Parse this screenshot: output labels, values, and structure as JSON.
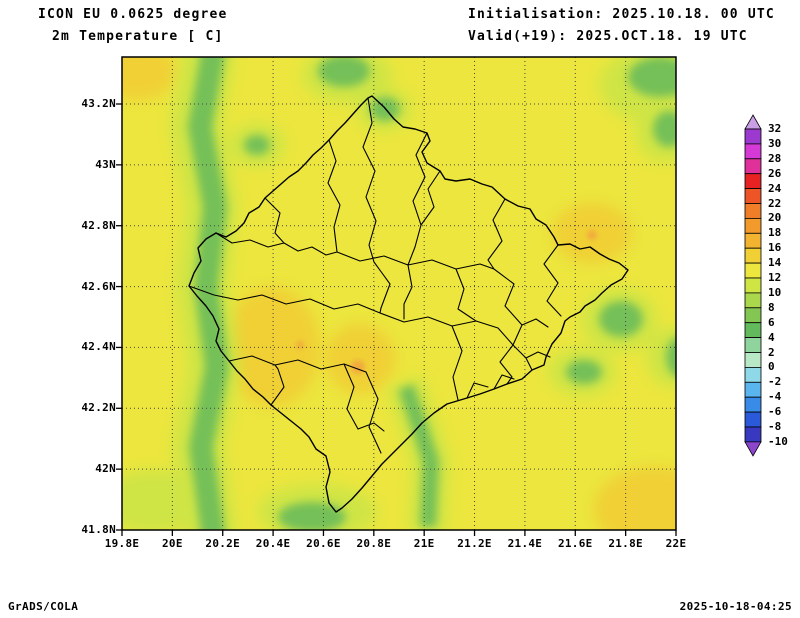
{
  "title": {
    "model": "ICON EU 0.0625 degree",
    "variable": "2m Temperature [ C]",
    "initialisation": "Initialisation: 2025.10.18. 00 UTC",
    "valid": "Valid(+19): 2025.OCT.18. 19 UTC"
  },
  "footer": {
    "credit": "GrADS/COLA",
    "created": "2025-10-18-04:25"
  },
  "axes": {
    "lat_labels": [
      "43.2N",
      "43N",
      "42.8N",
      "42.6N",
      "42.4N",
      "42.2N",
      "42N",
      "41.8N"
    ],
    "lon_labels": [
      "19.8E",
      "20E",
      "20.2E",
      "20.4E",
      "20.6E",
      "20.8E",
      "21E",
      "21.2E",
      "21.4E",
      "21.6E",
      "21.8E",
      "22E"
    ]
  },
  "colorbar": {
    "tick_labels": [
      "32",
      "30",
      "28",
      "26",
      "24",
      "22",
      "20",
      "18",
      "16",
      "14",
      "12",
      "10",
      "8",
      "6",
      "4",
      "2",
      "0",
      "-2",
      "-4",
      "-6",
      "-8",
      "-10"
    ],
    "colors_top_to_bottom": [
      "#c9a0e6",
      "#9c3ad0",
      "#d63ad6",
      "#e0309a",
      "#e62222",
      "#ee5526",
      "#f07d28",
      "#f29a2c",
      "#f2b430",
      "#f0d034",
      "#ece63e",
      "#cfe544",
      "#abd74c",
      "#84c654",
      "#62ba5c",
      "#8fd49c",
      "#b8e8c6",
      "#8ed8e8",
      "#5ab4ee",
      "#388ce8",
      "#2a5ada",
      "#3838c0",
      "#8c46cc"
    ]
  },
  "map_palette": {
    "base_12_14": "#ece63e",
    "band_10_12": "#cfe544",
    "green_4_8": "#74c058",
    "gold_14_16": "#f0d034",
    "orange_16_18": "#f2ab3c",
    "boundary": "#000000",
    "grid": "#454545",
    "frame": "#000000"
  },
  "chart_data": {
    "type": "heatmap",
    "title": "2m Temperature [ C]",
    "model": "ICON EU 0.0625 degree",
    "init_time": "2025.10.18. 00 UTC",
    "valid_time": "2025.OCT.18. 19 UTC",
    "forecast_hour": 19,
    "units": "C",
    "x_range_deg_east": [
      19.8,
      22.0
    ],
    "y_range_deg_north": [
      41.8,
      43.35
    ],
    "graticule_step_deg": 0.2,
    "grid": "dotted graticule on",
    "legend_position": "right vertical colorbar with end arrows",
    "contour_levels_c": [
      -10,
      -8,
      -6,
      -4,
      -2,
      0,
      2,
      4,
      6,
      8,
      10,
      12,
      14,
      16,
      18,
      20,
      22,
      24,
      26,
      28,
      30,
      32
    ],
    "overlay": "Kosovo national and municipal boundaries (black)",
    "field_regions": [
      {
        "area": "dominant value over most of the domain",
        "temp_c": "12-14"
      },
      {
        "area": "western plain near 20.3-20.6E 42.2-42.6N",
        "temp_c": "14-16"
      },
      {
        "area": "western mountain band along 20.05-20.3E, full N-S extent",
        "temp_c": "4-8"
      },
      {
        "area": "north-central patches near 20.65-20.85E 43.15-43.35N",
        "temp_c": "4-8"
      },
      {
        "area": "north-east corner near 21.9-22E 43.1-43.3N",
        "temp_c": "4-8"
      },
      {
        "area": "eastern patches near 21.55-21.85E 42.4-42.7N",
        "temp_c": "4-8"
      },
      {
        "area": "Sharr mountain band near 20.9-21.05E 41.95-42.3N",
        "temp_c": "4-8"
      },
      {
        "area": "southern band near 20.4-20.7E 41.8-41.95N",
        "temp_c": "4-8"
      },
      {
        "area": "warm spot near 20.73E 42.34N",
        "temp_c": "16-18"
      },
      {
        "area": "warm spot near 21.67E 42.77N",
        "temp_c": "14-18"
      },
      {
        "area": "south-east corner near 21.8-22E 41.8-42.0N",
        "temp_c": "14-16"
      }
    ]
  }
}
